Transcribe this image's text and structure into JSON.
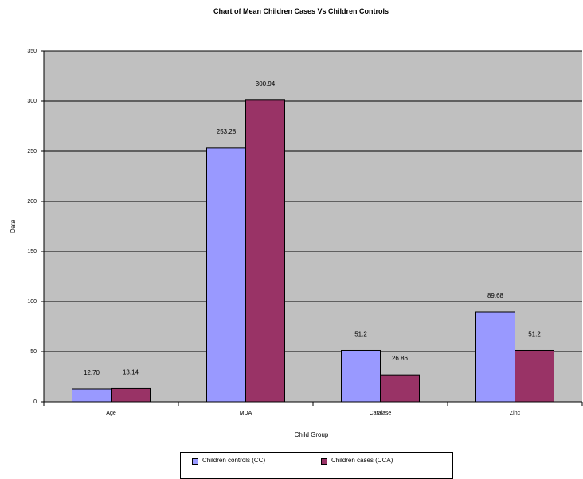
{
  "chart_data": {
    "type": "bar",
    "title": "Chart of Mean Children  Cases Vs  Children Controls",
    "xlabel": "Child Group",
    "ylabel": "Data",
    "categories": [
      "Age",
      "MDA",
      "Catalase",
      "Zinc"
    ],
    "series": [
      {
        "name": "Children controls  (CC)",
        "color": "#9999ff",
        "values": [
          12.7,
          253.28,
          51.2,
          89.68
        ],
        "labels": [
          "12.70",
          "253.28",
          "51.2",
          "89.68"
        ]
      },
      {
        "name": "Children cases (CCA)",
        "color": "#993366",
        "values": [
          13.14,
          300.94,
          26.86,
          51.2
        ],
        "labels": [
          "13.14",
          "300.94",
          "26.86",
          "51.2"
        ]
      }
    ],
    "ylim": [
      0,
      350
    ],
    "yticks": [
      "0",
      "50",
      "100",
      "150",
      "200",
      "250",
      "300",
      "350"
    ],
    "grid": true,
    "plot_background": "#c0c0c0",
    "legend_position": "bottom"
  }
}
